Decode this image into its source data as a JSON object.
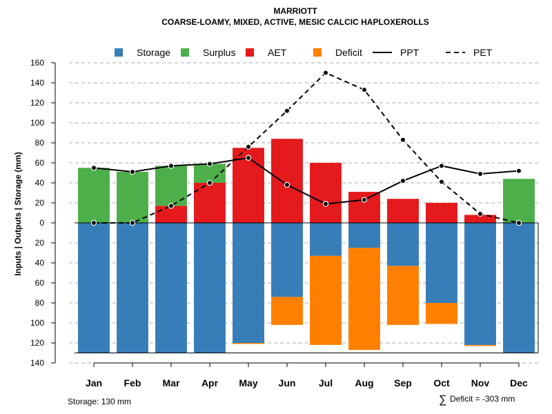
{
  "chart_data": {
    "type": "bar",
    "title": "MARRIOTT",
    "subtitle": "COARSE-LOAMY, MIXED, ACTIVE, MESIC CALCIC HAPLOXEROLLS",
    "ylabel": "Inputs | Outputs | Storage    (mm)",
    "ylim": [
      -140,
      160
    ],
    "y_ticks": [
      -140,
      -120,
      -100,
      -80,
      -60,
      -40,
      -20,
      0,
      20,
      40,
      60,
      80,
      100,
      120,
      140,
      160
    ],
    "y_tick_labels": [
      "140",
      "120",
      "100",
      "80",
      "60",
      "40",
      "20",
      "0",
      "20",
      "40",
      "60",
      "80",
      "100",
      "120",
      "140",
      "160"
    ],
    "grid": true,
    "legend_position": "top",
    "categories": [
      "Jan",
      "Feb",
      "Mar",
      "Apr",
      "May",
      "Jun",
      "Jul",
      "Aug",
      "Sep",
      "Oct",
      "Nov",
      "Dec"
    ],
    "legend": [
      {
        "name": "Storage",
        "kind": "box",
        "color": "#377EB8"
      },
      {
        "name": "Surplus",
        "kind": "box",
        "color": "#4DAF4A"
      },
      {
        "name": "AET",
        "kind": "box",
        "color": "#E41A1C"
      },
      {
        "name": "Deficit",
        "kind": "box",
        "color": "#FF7F00"
      },
      {
        "name": "PPT",
        "kind": "line-solid",
        "color": "#000000"
      },
      {
        "name": "PET",
        "kind": "line-dashed",
        "color": "#000000"
      }
    ],
    "series": {
      "storage": {
        "name": "Storage",
        "color": "#377EB8",
        "values": [
          130,
          130,
          130,
          130,
          120,
          74,
          33,
          25,
          43,
          80,
          122,
          130
        ]
      },
      "deficit": {
        "name": "Deficit",
        "color": "#FF7F00",
        "values": [
          0,
          0,
          0,
          0,
          1,
          28,
          89,
          102,
          59,
          21,
          1,
          0
        ]
      },
      "surplus": {
        "name": "Surplus",
        "color": "#4DAF4A",
        "values": [
          55,
          51,
          40,
          19,
          0,
          0,
          0,
          0,
          0,
          0,
          0,
          44
        ]
      },
      "aet": {
        "name": "AET",
        "color": "#E41A1C",
        "values": [
          0,
          0,
          17,
          40,
          75,
          84,
          60,
          31,
          24,
          20,
          8,
          0
        ]
      },
      "ppt": {
        "name": "PPT",
        "color": "#000000",
        "values": [
          55,
          51,
          57,
          59,
          65,
          38,
          19,
          23,
          42,
          57,
          49,
          52
        ]
      },
      "pet": {
        "name": "PET",
        "color": "#000000",
        "values": [
          0,
          0,
          17,
          40,
          76,
          112,
          150,
          133,
          83,
          41,
          9,
          0
        ]
      }
    },
    "storage_capacity": 130
  },
  "footer": {
    "storage_note": "Storage: 130 mm",
    "deficit_symbol": "∑",
    "deficit_note": "Deficit = -303 mm"
  }
}
